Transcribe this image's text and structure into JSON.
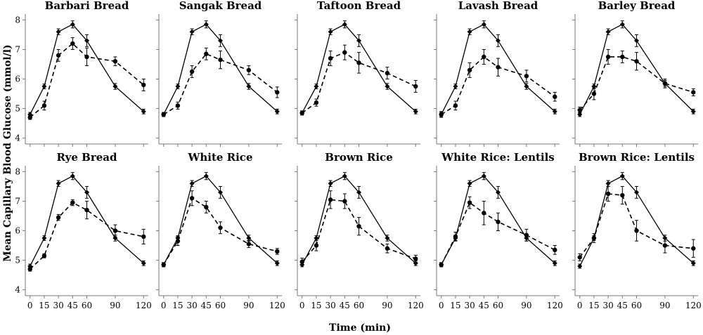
{
  "figure": {
    "ylabel": "Mean Capillary Blood Glucose (mmol/l)",
    "xlabel": "Time (min)"
  },
  "chart_data": [
    {
      "type": "line",
      "title": "Barbari Bread",
      "x": [
        0,
        15,
        30,
        45,
        60,
        90,
        120
      ],
      "xlim": [
        -5,
        125
      ],
      "ylim": [
        3.8,
        8.2
      ],
      "yticks": [
        4,
        5,
        6,
        7,
        8
      ],
      "series": [
        {
          "style": "solid",
          "marker": "diamond",
          "values": [
            4.8,
            5.75,
            7.6,
            7.85,
            7.3,
            5.75,
            4.9
          ],
          "error": [
            0.07,
            0.08,
            0.1,
            0.12,
            0.2,
            0.1,
            0.08
          ]
        },
        {
          "style": "dashed",
          "marker": "circle",
          "values": [
            4.7,
            5.1,
            6.8,
            7.2,
            6.75,
            6.6,
            5.8
          ],
          "error": [
            0.07,
            0.15,
            0.2,
            0.2,
            0.3,
            0.15,
            0.2
          ]
        }
      ]
    },
    {
      "type": "line",
      "title": "Sangak Bread",
      "x": [
        0,
        15,
        30,
        45,
        60,
        90,
        120
      ],
      "xlim": [
        -5,
        125
      ],
      "ylim": [
        3.8,
        8.2
      ],
      "yticks": [
        4,
        5,
        6,
        7,
        8
      ],
      "series": [
        {
          "style": "solid",
          "marker": "diamond",
          "values": [
            4.8,
            5.75,
            7.6,
            7.85,
            7.3,
            5.75,
            4.9
          ],
          "error": [
            0.07,
            0.08,
            0.1,
            0.12,
            0.2,
            0.1,
            0.08
          ]
        },
        {
          "style": "dashed",
          "marker": "circle",
          "values": [
            4.8,
            5.1,
            6.25,
            6.85,
            6.65,
            6.3,
            5.55
          ],
          "error": [
            0.07,
            0.12,
            0.2,
            0.2,
            0.3,
            0.15,
            0.18
          ]
        }
      ]
    },
    {
      "type": "line",
      "title": "Taftoon Bread",
      "x": [
        0,
        15,
        30,
        45,
        60,
        90,
        120
      ],
      "xlim": [
        -5,
        125
      ],
      "ylim": [
        3.8,
        8.2
      ],
      "yticks": [
        4,
        5,
        6,
        7,
        8
      ],
      "series": [
        {
          "style": "solid",
          "marker": "diamond",
          "values": [
            4.85,
            5.75,
            7.6,
            7.85,
            7.3,
            5.75,
            4.9
          ],
          "error": [
            0.07,
            0.08,
            0.1,
            0.12,
            0.2,
            0.1,
            0.08
          ]
        },
        {
          "style": "dashed",
          "marker": "circle",
          "values": [
            4.85,
            5.2,
            6.7,
            6.9,
            6.55,
            6.2,
            5.75
          ],
          "error": [
            0.07,
            0.12,
            0.25,
            0.25,
            0.35,
            0.2,
            0.2
          ]
        }
      ]
    },
    {
      "type": "line",
      "title": "Lavash Bread",
      "x": [
        0,
        15,
        30,
        45,
        60,
        90,
        120
      ],
      "xlim": [
        -5,
        125
      ],
      "ylim": [
        3.8,
        8.2
      ],
      "yticks": [
        4,
        5,
        6,
        7,
        8
      ],
      "series": [
        {
          "style": "solid",
          "marker": "diamond",
          "values": [
            4.8,
            5.75,
            7.6,
            7.85,
            7.3,
            5.75,
            4.9
          ],
          "error": [
            0.07,
            0.08,
            0.1,
            0.12,
            0.2,
            0.1,
            0.08
          ]
        },
        {
          "style": "dashed",
          "marker": "circle",
          "values": [
            4.8,
            5.1,
            6.3,
            6.75,
            6.4,
            6.1,
            5.4
          ],
          "error": [
            0.1,
            0.15,
            0.25,
            0.25,
            0.3,
            0.2,
            0.15
          ]
        }
      ]
    },
    {
      "type": "line",
      "title": "Barley Bread",
      "x": [
        0,
        15,
        30,
        45,
        60,
        90,
        120
      ],
      "xlim": [
        -5,
        125
      ],
      "ylim": [
        3.8,
        8.2
      ],
      "yticks": [
        4,
        5,
        6,
        7,
        8
      ],
      "series": [
        {
          "style": "solid",
          "marker": "diamond",
          "values": [
            4.8,
            5.75,
            7.6,
            7.85,
            7.3,
            5.85,
            4.9
          ],
          "error": [
            0.07,
            0.08,
            0.1,
            0.12,
            0.2,
            0.1,
            0.08
          ]
        },
        {
          "style": "dashed",
          "marker": "circle",
          "values": [
            4.95,
            5.5,
            6.75,
            6.75,
            6.6,
            5.85,
            5.55
          ],
          "error": [
            0.1,
            0.2,
            0.25,
            0.2,
            0.3,
            0.15,
            0.12
          ]
        }
      ]
    },
    {
      "type": "line",
      "title": "Rye Bread",
      "x": [
        0,
        15,
        30,
        45,
        60,
        90,
        120
      ],
      "xlim": [
        -5,
        125
      ],
      "ylim": [
        3.8,
        8.2
      ],
      "yticks": [
        4,
        5,
        6,
        7,
        8
      ],
      "series": [
        {
          "style": "solid",
          "marker": "diamond",
          "values": [
            4.8,
            5.75,
            7.6,
            7.85,
            7.3,
            5.75,
            4.9
          ],
          "error": [
            0.07,
            0.08,
            0.1,
            0.12,
            0.2,
            0.1,
            0.08
          ]
        },
        {
          "style": "dashed",
          "marker": "circle",
          "values": [
            4.7,
            5.15,
            6.45,
            6.95,
            6.7,
            6.0,
            5.8
          ],
          "error": [
            0.07,
            0.07,
            0.1,
            0.1,
            0.3,
            0.2,
            0.25
          ]
        }
      ]
    },
    {
      "type": "line",
      "title": "White Rice",
      "x": [
        0,
        15,
        30,
        45,
        60,
        90,
        120
      ],
      "xlim": [
        -5,
        125
      ],
      "ylim": [
        3.8,
        8.2
      ],
      "yticks": [
        4,
        5,
        6,
        7,
        8
      ],
      "series": [
        {
          "style": "solid",
          "marker": "diamond",
          "values": [
            4.85,
            5.75,
            7.6,
            7.85,
            7.3,
            5.75,
            4.9
          ],
          "error": [
            0.07,
            0.08,
            0.1,
            0.12,
            0.2,
            0.1,
            0.08
          ]
        },
        {
          "style": "dashed",
          "marker": "circle",
          "values": [
            4.85,
            5.65,
            7.1,
            6.8,
            6.1,
            5.55,
            5.3
          ],
          "error": [
            0.07,
            0.15,
            0.25,
            0.2,
            0.2,
            0.12,
            0.1
          ]
        }
      ]
    },
    {
      "type": "line",
      "title": "Brown Rice",
      "x": [
        0,
        15,
        30,
        45,
        60,
        90,
        120
      ],
      "xlim": [
        -5,
        125
      ],
      "ylim": [
        3.8,
        8.2
      ],
      "yticks": [
        4,
        5,
        6,
        7,
        8
      ],
      "series": [
        {
          "style": "solid",
          "marker": "diamond",
          "values": [
            4.85,
            5.75,
            7.6,
            7.85,
            7.3,
            5.75,
            4.9
          ],
          "error": [
            0.07,
            0.08,
            0.1,
            0.12,
            0.2,
            0.1,
            0.08
          ]
        },
        {
          "style": "dashed",
          "marker": "circle",
          "values": [
            4.95,
            5.5,
            7.05,
            7.0,
            6.15,
            5.4,
            5.05
          ],
          "error": [
            0.12,
            0.18,
            0.3,
            0.25,
            0.3,
            0.15,
            0.12
          ]
        }
      ]
    },
    {
      "type": "line",
      "title": "White Rice: Lentils",
      "x": [
        0,
        15,
        30,
        45,
        60,
        90,
        120
      ],
      "xlim": [
        -5,
        125
      ],
      "ylim": [
        3.8,
        8.2
      ],
      "yticks": [
        4,
        5,
        6,
        7,
        8
      ],
      "series": [
        {
          "style": "solid",
          "marker": "diamond",
          "values": [
            4.85,
            5.75,
            7.6,
            7.85,
            7.3,
            5.75,
            4.9
          ],
          "error": [
            0.07,
            0.08,
            0.1,
            0.12,
            0.2,
            0.1,
            0.08
          ]
        },
        {
          "style": "dashed",
          "marker": "circle",
          "values": [
            4.85,
            5.8,
            6.95,
            6.6,
            6.3,
            5.85,
            5.35
          ],
          "error": [
            0.07,
            0.15,
            0.2,
            0.4,
            0.3,
            0.2,
            0.15
          ]
        }
      ]
    },
    {
      "type": "line",
      "title": "Brown Rice: Lentils",
      "x": [
        0,
        15,
        30,
        45,
        60,
        90,
        120
      ],
      "xlim": [
        -5,
        125
      ],
      "ylim": [
        3.8,
        8.2
      ],
      "yticks": [
        4,
        5,
        6,
        7,
        8
      ],
      "series": [
        {
          "style": "solid",
          "marker": "diamond",
          "values": [
            4.8,
            5.75,
            7.6,
            7.85,
            7.3,
            5.75,
            4.9
          ],
          "error": [
            0.07,
            0.08,
            0.1,
            0.12,
            0.2,
            0.1,
            0.08
          ]
        },
        {
          "style": "dashed",
          "marker": "circle",
          "values": [
            5.1,
            5.75,
            7.25,
            7.2,
            6.0,
            5.5,
            5.4
          ],
          "error": [
            0.12,
            0.15,
            0.25,
            0.3,
            0.35,
            0.25,
            0.3
          ]
        }
      ]
    }
  ]
}
